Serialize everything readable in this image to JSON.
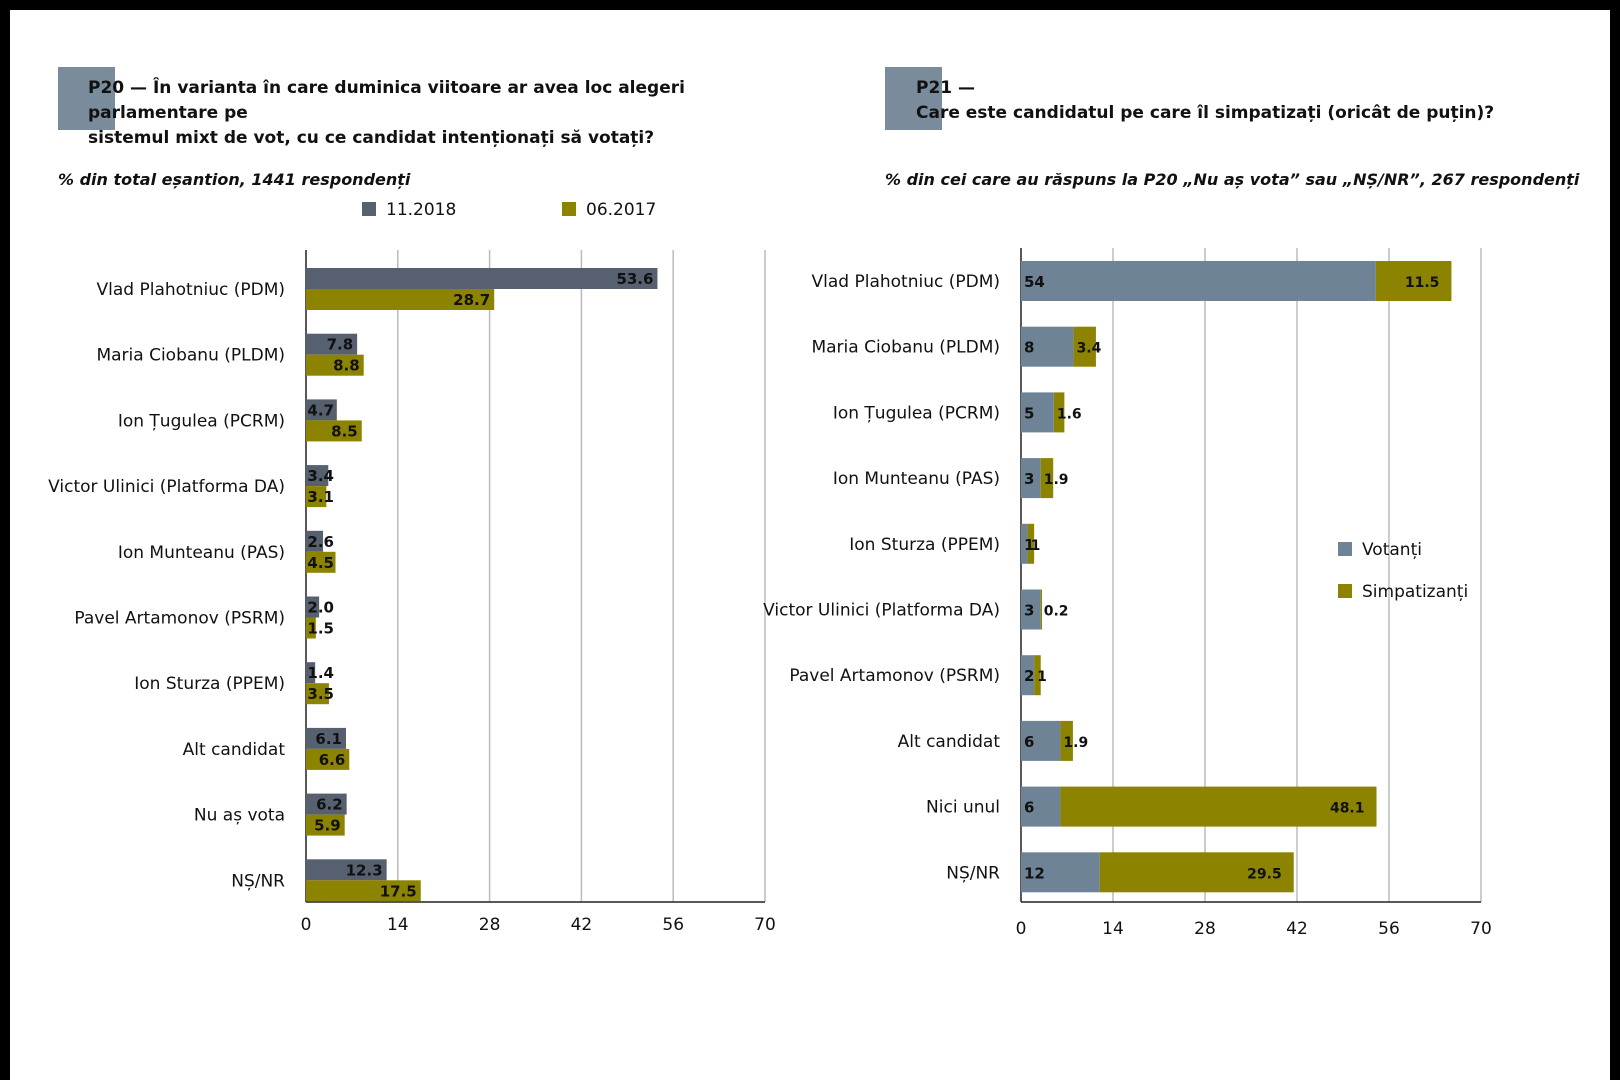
{
  "colors": {
    "header_block": "#7a8b9c",
    "series_2018": "#56606e",
    "series_2017": "#8c8300",
    "votanti": "#6e8496",
    "simpatizanti": "#8c8300",
    "grid": "#bbbbbb"
  },
  "left": {
    "code": "P20 —",
    "title_line1": "În varianta în care duminica viitoare ar avea loc alegeri parlamentare pe",
    "title_line2": "sistemul mixt de vot, cu ce candidat intenționați să votați?",
    "subtitle": "% din total eșantion, 1441 respondenți"
  },
  "right": {
    "code": "P21 —",
    "title_line2": "Care este candidatul pe care îl simpatizați (oricât de puțin)?",
    "subtitle": "% din cei care au răspuns la P20 „Nu aș vota” sau „NȘ/NR”, 267 respondenți"
  },
  "chart_data": [
    {
      "type": "bar",
      "orientation": "horizontal",
      "grouping": "clustered",
      "categories": [
        "Vlad Plahotniuc (PDM)",
        "Maria Ciobanu (PLDM)",
        "Ion Țugulea (PCRM)",
        "Victor Ulinici (Platforma DA)",
        "Ion Munteanu (PAS)",
        "Pavel Artamonov (PSRM)",
        "Ion Sturza (PPEM)",
        "Alt candidat",
        "Nu aș vota",
        "NȘ/NR"
      ],
      "series": [
        {
          "name": "11.2018",
          "values": [
            53.6,
            7.8,
            4.7,
            3.4,
            2.6,
            2.0,
            1.4,
            6.1,
            6.2,
            12.3
          ],
          "labels": [
            "53.6",
            "7.8",
            "4.7",
            "3.4",
            "2.6",
            "2.0",
            "1.4",
            "6.1",
            "6.2",
            "12.3"
          ]
        },
        {
          "name": "06.2017",
          "values": [
            28.7,
            8.8,
            8.5,
            3.1,
            4.5,
            1.5,
            3.5,
            6.6,
            5.9,
            17.5
          ],
          "labels": [
            "28.7",
            "8.8",
            "8.5",
            "3.1",
            "4.5",
            "1.5",
            "3.5",
            "6.6",
            "5.9",
            "17.5"
          ]
        }
      ],
      "xticks": [
        "0",
        "14",
        "28",
        "42",
        "56",
        "70"
      ],
      "xlim": [
        0,
        70
      ],
      "grid": true,
      "legend_position": "top"
    },
    {
      "type": "bar",
      "orientation": "horizontal",
      "grouping": "stacked",
      "categories": [
        "Vlad Plahotniuc (PDM)",
        "Maria Ciobanu (PLDM)",
        "Ion Țugulea (PCRM)",
        "Ion Munteanu (PAS)",
        "Ion Sturza (PPEM)",
        "Victor Ulinici (Platforma DA)",
        "Pavel Artamonov (PSRM)",
        "Alt candidat",
        "Nici unul",
        "NȘ/NR"
      ],
      "series": [
        {
          "name": "Votanți",
          "values": [
            54,
            8,
            5,
            3,
            1,
            3,
            2,
            6,
            6,
            12
          ],
          "labels": [
            "54",
            "8",
            "5",
            "3",
            "1",
            "3",
            "2",
            "6",
            "6",
            "12"
          ]
        },
        {
          "name": "Simpatizanți",
          "values": [
            11.5,
            3.4,
            1.6,
            1.9,
            1,
            0.2,
            1,
            1.9,
            48.1,
            29.5
          ],
          "labels": [
            "11.5",
            "3.4",
            "1.6",
            "1.9",
            "1",
            "0.2",
            "1",
            "1.9",
            "48.1",
            "29.5"
          ]
        }
      ],
      "xticks": [
        "0",
        "14",
        "28",
        "42",
        "56",
        "70"
      ],
      "xlim": [
        0,
        70
      ],
      "grid": true,
      "legend_position": "right"
    }
  ]
}
